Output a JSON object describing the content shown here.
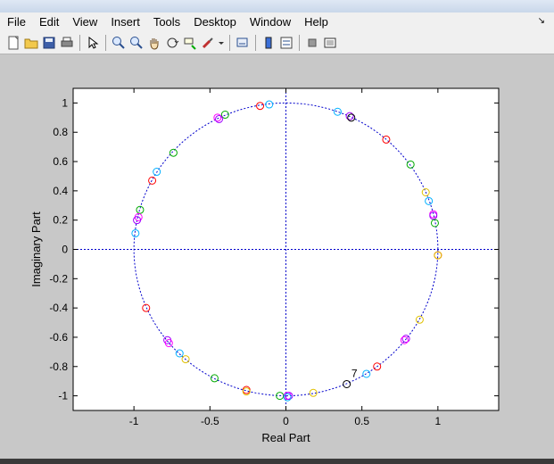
{
  "menu": {
    "items": [
      "File",
      "Edit",
      "View",
      "Insert",
      "Tools",
      "Desktop",
      "Window",
      "Help"
    ]
  },
  "toolbar": {
    "icons": [
      "new-figure-icon",
      "open-file-icon",
      "save-icon",
      "print-icon",
      "select-arrow-icon",
      "zoom-in-icon",
      "zoom-out-icon",
      "pan-hand-icon",
      "rotate-3d-icon",
      "data-cursor-icon",
      "brush-icon",
      "brush-dropdown-icon",
      "link-plot-icon",
      "colorbar-icon",
      "legend-icon",
      "hide-plot-tools-icon",
      "show-plot-tools-icon"
    ]
  },
  "colors": {
    "circle_guide": "#0000cc",
    "axes_lines": "#0000cc",
    "marker_colors": [
      "#00aa00",
      "#ff0000",
      "#00b0ff",
      "#ff00ff",
      "#000000",
      "#e0c000",
      "#a000ff"
    ]
  },
  "chart_data": {
    "type": "scatter",
    "xlabel": "Real Part",
    "ylabel": "Imaginary Part",
    "xlim": [
      -1.4,
      1.4
    ],
    "ylim": [
      -1.1,
      1.1
    ],
    "xticks": [
      -1,
      -0.5,
      0,
      0.5,
      1
    ],
    "yticks": [
      -1,
      -0.8,
      -0.6,
      -0.4,
      -0.2,
      0,
      0.2,
      0.4,
      0.6,
      0.8,
      1
    ],
    "xticklabels": [
      "-1",
      "-0.5",
      "0",
      "0.5",
      "1"
    ],
    "yticklabels": [
      "-1",
      "-0.8",
      "-0.6",
      "-0.4",
      "-0.2",
      "0",
      "0.2",
      "0.4",
      "0.6",
      "0.8",
      "1"
    ],
    "unit_circle": true,
    "grid": false,
    "annotation": {
      "text": "7",
      "x": 0.45,
      "y": -0.87
    },
    "points": [
      {
        "x": -0.17,
        "y": 0.98,
        "color": "#ff0000"
      },
      {
        "x": -0.11,
        "y": 0.99,
        "color": "#00b0ff"
      },
      {
        "x": 0.34,
        "y": 0.94,
        "color": "#00b0ff"
      },
      {
        "x": 0.42,
        "y": 0.91,
        "color": "#a000ff"
      },
      {
        "x": 0.43,
        "y": 0.9,
        "color": "#000000"
      },
      {
        "x": -0.4,
        "y": 0.92,
        "color": "#00aa00"
      },
      {
        "x": -0.45,
        "y": 0.9,
        "color": "#ff00ff"
      },
      {
        "x": -0.44,
        "y": 0.89,
        "color": "#a000ff"
      },
      {
        "x": 0.66,
        "y": 0.75,
        "color": "#ff0000"
      },
      {
        "x": -0.74,
        "y": 0.66,
        "color": "#00aa00"
      },
      {
        "x": 0.82,
        "y": 0.58,
        "color": "#00aa00"
      },
      {
        "x": -0.85,
        "y": 0.53,
        "color": "#00b0ff"
      },
      {
        "x": -0.88,
        "y": 0.47,
        "color": "#ff0000"
      },
      {
        "x": 0.92,
        "y": 0.39,
        "color": "#e0c000"
      },
      {
        "x": 0.94,
        "y": 0.33,
        "color": "#00b0ff"
      },
      {
        "x": -0.96,
        "y": 0.27,
        "color": "#00aa00"
      },
      {
        "x": 0.97,
        "y": 0.24,
        "color": "#ff00ff"
      },
      {
        "x": 0.97,
        "y": 0.23,
        "color": "#a000ff"
      },
      {
        "x": -0.97,
        "y": 0.22,
        "color": "#ff00ff"
      },
      {
        "x": -0.98,
        "y": 0.2,
        "color": "#a000ff"
      },
      {
        "x": 0.98,
        "y": 0.18,
        "color": "#00aa00"
      },
      {
        "x": -0.99,
        "y": 0.11,
        "color": "#00b0ff"
      },
      {
        "x": 1.0,
        "y": -0.04,
        "color": "#ff0000"
      },
      {
        "x": 1.0,
        "y": -0.04,
        "color": "#e0c000"
      },
      {
        "x": -0.92,
        "y": -0.4,
        "color": "#ff0000"
      },
      {
        "x": 0.88,
        "y": -0.48,
        "color": "#e0c000"
      },
      {
        "x": 0.79,
        "y": -0.61,
        "color": "#a000ff"
      },
      {
        "x": 0.78,
        "y": -0.62,
        "color": "#ff00ff"
      },
      {
        "x": -0.78,
        "y": -0.62,
        "color": "#a000ff"
      },
      {
        "x": -0.77,
        "y": -0.64,
        "color": "#ff00ff"
      },
      {
        "x": -0.7,
        "y": -0.71,
        "color": "#00b0ff"
      },
      {
        "x": -0.66,
        "y": -0.75,
        "color": "#e0c000"
      },
      {
        "x": 0.6,
        "y": -0.8,
        "color": "#ff0000"
      },
      {
        "x": 0.53,
        "y": -0.85,
        "color": "#00b0ff"
      },
      {
        "x": -0.47,
        "y": -0.88,
        "color": "#00aa00"
      },
      {
        "x": 0.4,
        "y": -0.92,
        "color": "#000000"
      },
      {
        "x": -0.26,
        "y": -0.96,
        "color": "#ff0000"
      },
      {
        "x": -0.26,
        "y": -0.97,
        "color": "#e0c000"
      },
      {
        "x": 0.18,
        "y": -0.98,
        "color": "#e0c000"
      },
      {
        "x": -0.04,
        "y": -1.0,
        "color": "#00aa00"
      },
      {
        "x": 0.01,
        "y": -1.0,
        "color": "#ff00ff"
      },
      {
        "x": 0.02,
        "y": -1.0,
        "color": "#a000ff"
      },
      {
        "x": 0.01,
        "y": -1.01,
        "color": "#00b0ff"
      }
    ]
  }
}
